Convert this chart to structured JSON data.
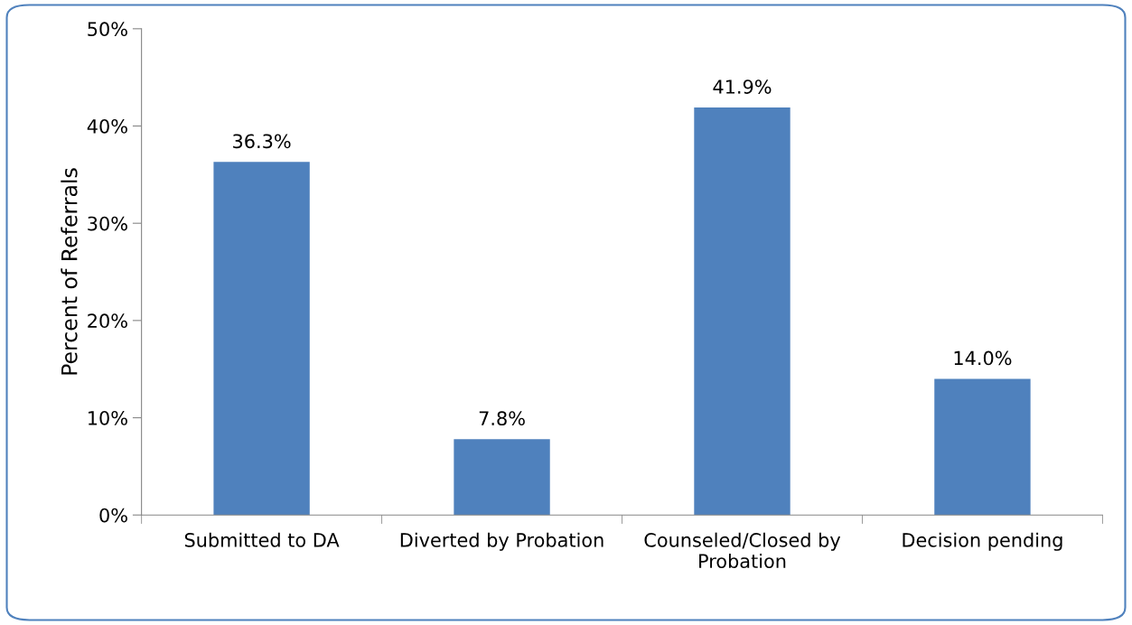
{
  "chart_data": {
    "type": "bar",
    "ylabel": "Percent of Referrals",
    "categories": [
      "Submitted to DA",
      "Diverted by Probation",
      "Counseled/Closed by Probation",
      "Decision pending"
    ],
    "values": [
      36.3,
      7.8,
      41.9,
      14.0
    ],
    "value_labels": [
      "36.3%",
      "7.8%",
      "41.9%",
      "14.0%"
    ],
    "color": "#4f81bd",
    "ylim": [
      0,
      50
    ],
    "yticks": [
      {
        "value": 0,
        "label": "0%"
      },
      {
        "value": 10,
        "label": "10%"
      },
      {
        "value": 20,
        "label": "20%"
      },
      {
        "value": 30,
        "label": "30%"
      },
      {
        "value": 40,
        "label": "40%"
      },
      {
        "value": 50,
        "label": "50%"
      }
    ],
    "grid": false,
    "legend": false
  }
}
